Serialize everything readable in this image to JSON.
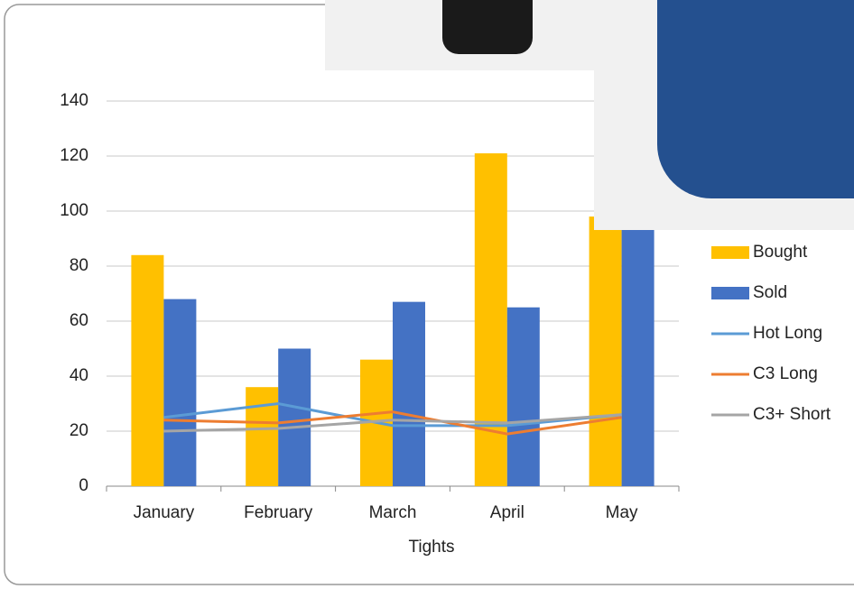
{
  "chart_data": {
    "type": "bar_line",
    "categories": [
      "January",
      "February",
      "March",
      "April",
      "May"
    ],
    "x_label": "Tights",
    "series": [
      {
        "name": "Bought",
        "kind": "bar",
        "color": "#FFC000",
        "values": [
          84,
          36,
          46,
          121,
          98
        ]
      },
      {
        "name": "Sold",
        "kind": "bar",
        "color": "#4472C4",
        "values": [
          68,
          50,
          67,
          65,
          95
        ]
      },
      {
        "name": "Hot Long",
        "kind": "line",
        "color": "#5B9BD5",
        "values": [
          25,
          30,
          22,
          22,
          26
        ]
      },
      {
        "name": "C3 Long",
        "kind": "line",
        "color": "#ED7D31",
        "values": [
          24,
          23,
          27,
          19,
          25
        ]
      },
      {
        "name": "C3+ Short",
        "kind": "line",
        "color": "#A5A5A5",
        "values": [
          20,
          21,
          24,
          23,
          26
        ]
      }
    ],
    "ylim": [
      0,
      140
    ],
    "yticks": [
      0,
      20,
      40,
      60,
      80,
      100,
      120,
      140
    ],
    "grid": true,
    "legend": "right"
  }
}
